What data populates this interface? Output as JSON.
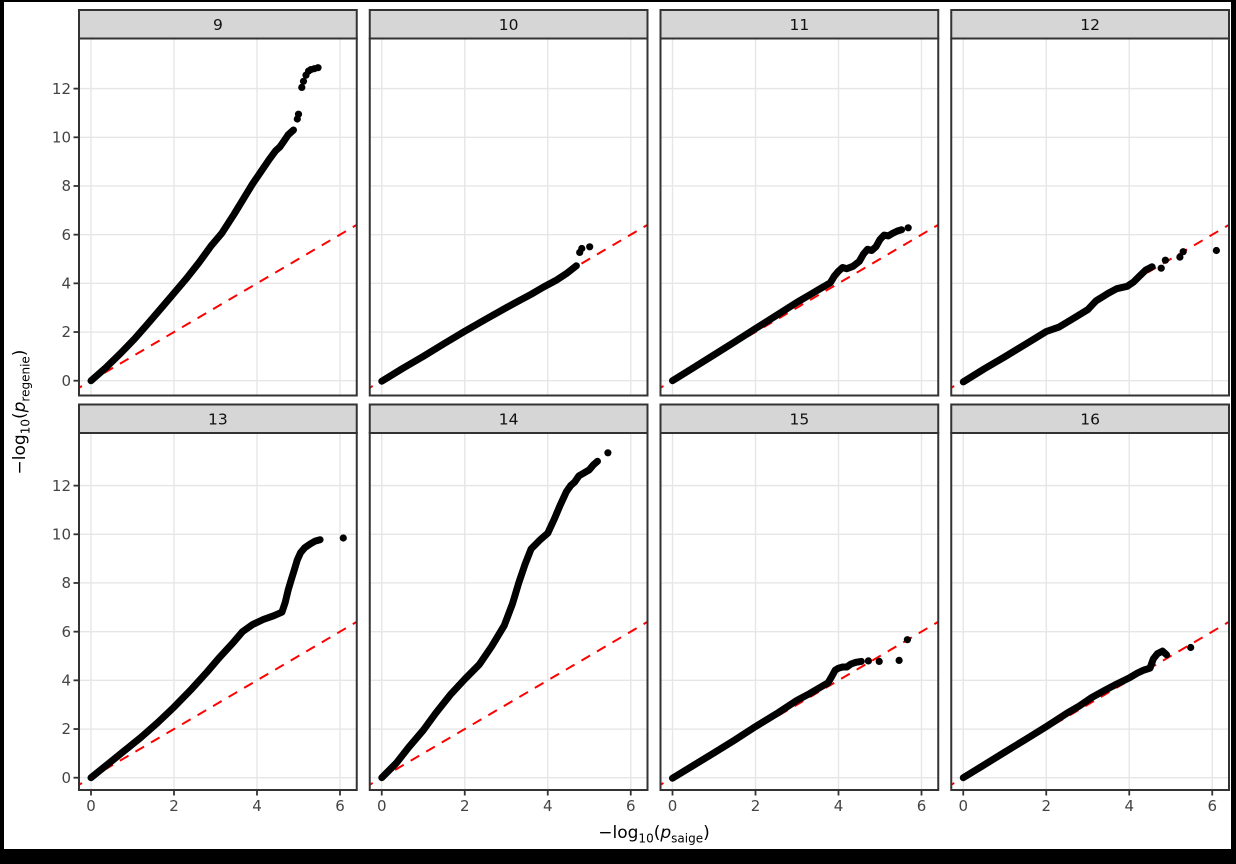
{
  "window": {
    "frame_color": "#000000",
    "figure_background": "#ffffff"
  },
  "axes": {
    "x": {
      "prefix": "−log",
      "sub": "10",
      "open": "(",
      "var": "p",
      "varsub": "saige",
      "close": ")"
    },
    "y": {
      "prefix": "−log",
      "sub": "10",
      "open": "(",
      "var": "p",
      "varsub": "regenie",
      "close": ")"
    }
  },
  "style": {
    "grid_color": "#e6e6e6",
    "panel_border_color": "#333333",
    "strip_fill": "#d6d6d6",
    "strip_border_color": "#333333",
    "strip_text_color": "#111111",
    "tick_mark_color": "#333333",
    "tick_label_color": "#444444",
    "point_color": "#000000",
    "reference_line_color": "#ff0000"
  },
  "chart_data": {
    "type": "scatter",
    "title": "",
    "xlabel": "-log10(p_saige)",
    "ylabel": "-log10(p_regenie)",
    "facets": [
      "9",
      "10",
      "11",
      "12",
      "13",
      "14",
      "15",
      "16"
    ],
    "x_ticks": [
      0,
      2,
      4,
      6
    ],
    "y_ticks": [
      0,
      2,
      4,
      6,
      8,
      10,
      12
    ],
    "x_range": [
      -0.29,
      6.4
    ],
    "y_range": [
      -0.6,
      14.05
    ],
    "grid": "major-only",
    "legend": "none",
    "reference_line": {
      "type": "identity",
      "slope": 1,
      "intercept": 0,
      "style": "dashed",
      "color": "#ff0000"
    },
    "panels": [
      {
        "facet": "9",
        "curve": [
          [
            0,
            0
          ],
          [
            0.35,
            0.52
          ],
          [
            0.7,
            1.1
          ],
          [
            1.05,
            1.72
          ],
          [
            1.35,
            2.3
          ],
          [
            1.7,
            3.0
          ],
          [
            2,
            3.6
          ],
          [
            2.3,
            4.2
          ],
          [
            2.6,
            4.85
          ],
          [
            2.9,
            5.55
          ],
          [
            3.15,
            6.05
          ],
          [
            3.45,
            6.85
          ],
          [
            3.7,
            7.55
          ],
          [
            3.9,
            8.1
          ],
          [
            4.1,
            8.6
          ],
          [
            4.3,
            9.1
          ],
          [
            4.45,
            9.45
          ],
          [
            4.55,
            9.6
          ],
          [
            4.65,
            9.85
          ],
          [
            4.75,
            10.1
          ],
          [
            4.88,
            10.3
          ]
        ],
        "outliers": [
          [
            4.97,
            10.75
          ],
          [
            5.0,
            10.95
          ],
          [
            5.08,
            12.05
          ],
          [
            5.12,
            12.3
          ],
          [
            5.18,
            12.55
          ],
          [
            5.24,
            12.72
          ],
          [
            5.3,
            12.78
          ],
          [
            5.38,
            12.82
          ],
          [
            5.47,
            12.86
          ]
        ]
      },
      {
        "facet": "10",
        "curve": [
          [
            0,
            -0.02
          ],
          [
            0.5,
            0.5
          ],
          [
            1,
            1.0
          ],
          [
            1.5,
            1.52
          ],
          [
            2,
            2.03
          ],
          [
            2.5,
            2.52
          ],
          [
            3,
            3.0
          ],
          [
            3.3,
            3.28
          ],
          [
            3.6,
            3.55
          ],
          [
            3.9,
            3.85
          ],
          [
            4.2,
            4.12
          ],
          [
            4.45,
            4.4
          ],
          [
            4.69,
            4.72
          ]
        ],
        "outliers": [
          [
            4.77,
            5.27
          ],
          [
            4.82,
            5.43
          ],
          [
            5.01,
            5.5
          ]
        ]
      },
      {
        "facet": "11",
        "curve": [
          [
            0,
            0
          ],
          [
            0.5,
            0.53
          ],
          [
            1,
            1.06
          ],
          [
            1.5,
            1.6
          ],
          [
            2,
            2.14
          ],
          [
            2.5,
            2.68
          ],
          [
            3,
            3.22
          ],
          [
            3.3,
            3.52
          ],
          [
            3.6,
            3.82
          ],
          [
            3.8,
            4.02
          ],
          [
            3.9,
            4.3
          ],
          [
            4,
            4.5
          ],
          [
            4.1,
            4.65
          ],
          [
            4.2,
            4.6
          ],
          [
            4.35,
            4.7
          ],
          [
            4.5,
            4.9
          ],
          [
            4.6,
            5.2
          ],
          [
            4.7,
            5.4
          ],
          [
            4.8,
            5.35
          ],
          [
            4.9,
            5.5
          ],
          [
            5,
            5.8
          ],
          [
            5.1,
            5.98
          ],
          [
            5.2,
            5.95
          ],
          [
            5.3,
            6.05
          ],
          [
            5.42,
            6.15
          ],
          [
            5.52,
            6.2
          ]
        ],
        "outliers": [
          [
            5.68,
            6.28
          ]
        ]
      },
      {
        "facet": "12",
        "curve": [
          [
            0,
            -0.05
          ],
          [
            0.5,
            0.48
          ],
          [
            1,
            0.98
          ],
          [
            1.5,
            1.5
          ],
          [
            2,
            2.02
          ],
          [
            2.3,
            2.2
          ],
          [
            2.6,
            2.5
          ],
          [
            3,
            2.92
          ],
          [
            3.2,
            3.28
          ],
          [
            3.5,
            3.6
          ],
          [
            3.7,
            3.78
          ],
          [
            3.95,
            3.88
          ],
          [
            4.1,
            4.05
          ],
          [
            4.25,
            4.3
          ],
          [
            4.4,
            4.55
          ],
          [
            4.55,
            4.68
          ]
        ],
        "outliers": [
          [
            4.77,
            4.62
          ],
          [
            4.87,
            4.95
          ],
          [
            5.22,
            5.08
          ],
          [
            5.3,
            5.3
          ],
          [
            6.1,
            5.35
          ]
        ]
      },
      {
        "facet": "13",
        "curve": [
          [
            0,
            0
          ],
          [
            0.4,
            0.55
          ],
          [
            0.8,
            1.1
          ],
          [
            1.2,
            1.65
          ],
          [
            1.6,
            2.25
          ],
          [
            2,
            2.9
          ],
          [
            2.4,
            3.6
          ],
          [
            2.8,
            4.35
          ],
          [
            3.1,
            4.95
          ],
          [
            3.4,
            5.5
          ],
          [
            3.65,
            6.0
          ],
          [
            3.9,
            6.3
          ],
          [
            4.15,
            6.5
          ],
          [
            4.4,
            6.65
          ],
          [
            4.6,
            6.8
          ],
          [
            4.68,
            7.2
          ],
          [
            4.75,
            7.7
          ],
          [
            4.82,
            8.1
          ],
          [
            4.9,
            8.55
          ],
          [
            4.97,
            8.95
          ],
          [
            5.05,
            9.25
          ],
          [
            5.15,
            9.45
          ],
          [
            5.28,
            9.6
          ],
          [
            5.4,
            9.72
          ],
          [
            5.52,
            9.78
          ]
        ],
        "outliers": [
          [
            6.08,
            9.85
          ]
        ]
      },
      {
        "facet": "14",
        "curve": [
          [
            0,
            0
          ],
          [
            0.35,
            0.6
          ],
          [
            0.65,
            1.25
          ],
          [
            1,
            1.95
          ],
          [
            1.3,
            2.65
          ],
          [
            1.65,
            3.4
          ],
          [
            2,
            4.05
          ],
          [
            2.35,
            4.65
          ],
          [
            2.65,
            5.4
          ],
          [
            2.95,
            6.25
          ],
          [
            3.15,
            7.15
          ],
          [
            3.3,
            8.0
          ],
          [
            3.45,
            8.75
          ],
          [
            3.6,
            9.4
          ],
          [
            3.8,
            9.75
          ],
          [
            4,
            10.05
          ],
          [
            4.15,
            10.6
          ],
          [
            4.3,
            11.2
          ],
          [
            4.45,
            11.75
          ],
          [
            4.55,
            12.0
          ],
          [
            4.65,
            12.15
          ],
          [
            4.75,
            12.4
          ],
          [
            4.85,
            12.5
          ],
          [
            5,
            12.65
          ],
          [
            5.1,
            12.85
          ],
          [
            5.2,
            13.0
          ]
        ],
        "outliers": [
          [
            5.45,
            13.35
          ]
        ]
      },
      {
        "facet": "15",
        "curve": [
          [
            0,
            -0.02
          ],
          [
            0.5,
            0.5
          ],
          [
            1,
            1.02
          ],
          [
            1.5,
            1.55
          ],
          [
            2,
            2.1
          ],
          [
            2.5,
            2.62
          ],
          [
            3,
            3.18
          ],
          [
            3.3,
            3.45
          ],
          [
            3.6,
            3.75
          ],
          [
            3.75,
            3.9
          ],
          [
            3.85,
            4.2
          ],
          [
            3.92,
            4.42
          ],
          [
            4,
            4.5
          ],
          [
            4.1,
            4.55
          ],
          [
            4.2,
            4.55
          ],
          [
            4.3,
            4.67
          ],
          [
            4.42,
            4.74
          ],
          [
            4.55,
            4.78
          ]
        ],
        "outliers": [
          [
            4.72,
            4.8
          ],
          [
            4.98,
            4.78
          ],
          [
            5.46,
            4.82
          ],
          [
            5.66,
            5.67
          ]
        ]
      },
      {
        "facet": "16",
        "curve": [
          [
            0,
            0
          ],
          [
            0.5,
            0.52
          ],
          [
            1,
            1.05
          ],
          [
            1.5,
            1.57
          ],
          [
            2,
            2.1
          ],
          [
            2.5,
            2.65
          ],
          [
            2.8,
            2.95
          ],
          [
            3.1,
            3.3
          ],
          [
            3.4,
            3.58
          ],
          [
            3.7,
            3.85
          ],
          [
            4,
            4.1
          ],
          [
            4.2,
            4.3
          ],
          [
            4.35,
            4.42
          ],
          [
            4.5,
            4.5
          ],
          [
            4.58,
            4.88
          ],
          [
            4.68,
            5.1
          ],
          [
            4.8,
            5.2
          ],
          [
            4.9,
            5.05
          ]
        ],
        "outliers": [
          [
            5.48,
            5.35
          ]
        ]
      }
    ]
  }
}
